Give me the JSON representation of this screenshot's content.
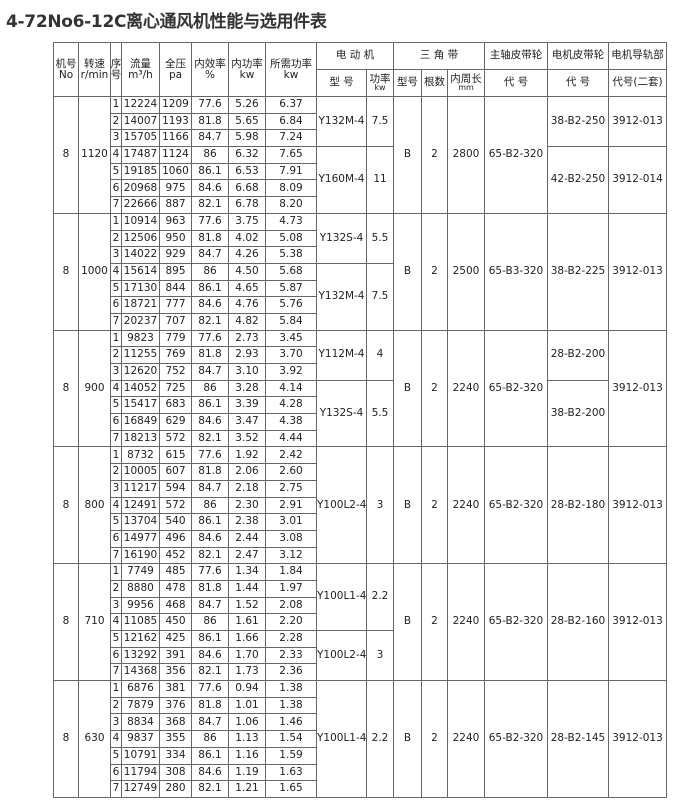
{
  "title": "4-72No6-12C离心通风机性能与选用件表",
  "header": {
    "machine": {
      "label": "机号",
      "unit": "No"
    },
    "speed": {
      "label": "转速",
      "unit": "r/min"
    },
    "seq": {
      "label": "序",
      "unit": "号"
    },
    "flow": {
      "label": "流量",
      "unit": "m³/h"
    },
    "pressure": {
      "label": "全压",
      "unit": "pa"
    },
    "efficiency": {
      "label": "内效率",
      "unit": "%"
    },
    "inner_power": {
      "label": "内功率",
      "unit": "kw"
    },
    "required_power": {
      "label": "所需功率",
      "unit": "kw"
    },
    "motor": {
      "label": "电 动 机",
      "model": "型 号",
      "power": "功率",
      "power_unit": "kw"
    },
    "belt": {
      "label": "三 角 带",
      "type": "型号",
      "count": "根数",
      "length": "内周长",
      "length_unit": "mm"
    },
    "main_pulley": {
      "label": "主轴皮带轮",
      "code": "代 号"
    },
    "motor_pulley": {
      "label": "电机皮带轮",
      "code": "代 号"
    },
    "rail": {
      "label": "电机导轨部",
      "code": "代号(二套)"
    }
  },
  "groups": [
    {
      "machine": "8",
      "speed": "1120",
      "rows": [
        [
          "1",
          "12224",
          "1209",
          "77.6",
          "5.26",
          "6.37"
        ],
        [
          "2",
          "14007",
          "1193",
          "81.8",
          "5.65",
          "6.84"
        ],
        [
          "3",
          "15705",
          "1166",
          "84.7",
          "5.98",
          "7.24"
        ],
        [
          "4",
          "17487",
          "1124",
          "86",
          "6.32",
          "7.65"
        ],
        [
          "5",
          "19185",
          "1060",
          "86.1",
          "6.53",
          "7.91"
        ],
        [
          "6",
          "20968",
          "975",
          "84.6",
          "6.68",
          "8.09"
        ],
        [
          "7",
          "22666",
          "887",
          "82.1",
          "6.78",
          "8.20"
        ]
      ],
      "motors": [
        {
          "model": "Y132M-4",
          "power": "7.5",
          "span": 3
        },
        {
          "model": "Y160M-4",
          "power": "11",
          "span": 4
        }
      ],
      "belt_type": "B",
      "belt_count": "2",
      "belt_length": "2800",
      "main_pulley": "65-B2-320",
      "motor_pulleys": [
        {
          "code": "38-B2-250",
          "span": 3
        },
        {
          "code": "42-B2-250",
          "span": 4
        }
      ],
      "rails": [
        {
          "code": "3912-013",
          "span": 3
        },
        {
          "code": "3912-014",
          "span": 4
        }
      ]
    },
    {
      "machine": "8",
      "speed": "1000",
      "rows": [
        [
          "1",
          "10914",
          "963",
          "77.6",
          "3.75",
          "4.73"
        ],
        [
          "2",
          "12506",
          "950",
          "81.8",
          "4.02",
          "5.08"
        ],
        [
          "3",
          "14022",
          "929",
          "84.7",
          "4.26",
          "5.38"
        ],
        [
          "4",
          "15614",
          "895",
          "86",
          "4.50",
          "5.68"
        ],
        [
          "5",
          "17130",
          "844",
          "86.1",
          "4.65",
          "5.87"
        ],
        [
          "6",
          "18721",
          "777",
          "84.6",
          "4.76",
          "5.76"
        ],
        [
          "7",
          "20237",
          "707",
          "82.1",
          "4.82",
          "5.84"
        ]
      ],
      "motors": [
        {
          "model": "Y132S-4",
          "power": "5.5",
          "span": 3
        },
        {
          "model": "Y132M-4",
          "power": "7.5",
          "span": 4
        }
      ],
      "belt_type": "B",
      "belt_count": "2",
      "belt_length": "2500",
      "main_pulley": "65-B3-320",
      "motor_pulleys": [
        {
          "code": "38-B2-225",
          "span": 7
        }
      ],
      "rails": [
        {
          "code": "3912-013",
          "span": 7
        }
      ]
    },
    {
      "machine": "8",
      "speed": "900",
      "rows": [
        [
          "1",
          "9823",
          "779",
          "77.6",
          "2.73",
          "3.45"
        ],
        [
          "2",
          "11255",
          "769",
          "81.8",
          "2.93",
          "3.70"
        ],
        [
          "3",
          "12620",
          "752",
          "84.7",
          "3.10",
          "3.92"
        ],
        [
          "4",
          "14052",
          "725",
          "86",
          "3.28",
          "4.14"
        ],
        [
          "5",
          "15417",
          "683",
          "86.1",
          "3.39",
          "4.28"
        ],
        [
          "6",
          "16849",
          "629",
          "84.6",
          "3.47",
          "4.38"
        ],
        [
          "7",
          "18213",
          "572",
          "82.1",
          "3.52",
          "4.44"
        ]
      ],
      "motors": [
        {
          "model": "Y112M-4",
          "power": "4",
          "span": 3
        },
        {
          "model": "Y132S-4",
          "power": "5.5",
          "span": 4
        }
      ],
      "belt_type": "B",
      "belt_count": "2",
      "belt_length": "2240",
      "main_pulley": "65-B2-320",
      "motor_pulleys": [
        {
          "code": "28-B2-200",
          "span": 3
        },
        {
          "code": "38-B2-200",
          "span": 4
        }
      ],
      "rails": [
        {
          "code": "3912-013",
          "span": 7
        }
      ]
    },
    {
      "machine": "8",
      "speed": "800",
      "rows": [
        [
          "1",
          "8732",
          "615",
          "77.6",
          "1.92",
          "2.42"
        ],
        [
          "2",
          "10005",
          "607",
          "81.8",
          "2.06",
          "2.60"
        ],
        [
          "3",
          "11217",
          "594",
          "84.7",
          "2.18",
          "2.75"
        ],
        [
          "4",
          "12491",
          "572",
          "86",
          "2.30",
          "2.91"
        ],
        [
          "5",
          "13704",
          "540",
          "86.1",
          "2.38",
          "3.01"
        ],
        [
          "6",
          "14977",
          "496",
          "84.6",
          "2.44",
          "3.08"
        ],
        [
          "7",
          "16190",
          "452",
          "82.1",
          "2.47",
          "3.12"
        ]
      ],
      "motors": [
        {
          "model": "Y100L2-4",
          "power": "3",
          "span": 7
        }
      ],
      "belt_type": "B",
      "belt_count": "2",
      "belt_length": "2240",
      "main_pulley": "65-B2-320",
      "motor_pulleys": [
        {
          "code": "28-B2-180",
          "span": 7
        }
      ],
      "rails": [
        {
          "code": "3912-013",
          "span": 7
        }
      ]
    },
    {
      "machine": "8",
      "speed": "710",
      "rows": [
        [
          "1",
          "7749",
          "485",
          "77.6",
          "1.34",
          "1.84"
        ],
        [
          "2",
          "8880",
          "478",
          "81.8",
          "1.44",
          "1.97"
        ],
        [
          "3",
          "9956",
          "468",
          "84.7",
          "1.52",
          "2.08"
        ],
        [
          "4",
          "11085",
          "450",
          "86",
          "1.61",
          "2.20"
        ],
        [
          "5",
          "12162",
          "425",
          "86.1",
          "1.66",
          "2.28"
        ],
        [
          "6",
          "13292",
          "391",
          "84.6",
          "1.70",
          "2.33"
        ],
        [
          "7",
          "14368",
          "356",
          "82.1",
          "1.73",
          "2.36"
        ]
      ],
      "motors": [
        {
          "model": "Y100L1-4",
          "power": "2.2",
          "span": 4
        },
        {
          "model": "Y100L2-4",
          "power": "3",
          "span": 3
        }
      ],
      "belt_type": "B",
      "belt_count": "2",
      "belt_length": "2240",
      "main_pulley": "65-B2-320",
      "motor_pulleys": [
        {
          "code": "28-B2-160",
          "span": 7
        }
      ],
      "rails": [
        {
          "code": "3912-013",
          "span": 7
        }
      ]
    },
    {
      "machine": "8",
      "speed": "630",
      "rows": [
        [
          "1",
          "6876",
          "381",
          "77.6",
          "0.94",
          "1.38"
        ],
        [
          "2",
          "7879",
          "376",
          "81.8",
          "1.01",
          "1.38"
        ],
        [
          "3",
          "8834",
          "368",
          "84.7",
          "1.06",
          "1.46"
        ],
        [
          "4",
          "9837",
          "355",
          "86",
          "1.13",
          "1.54"
        ],
        [
          "5",
          "10791",
          "334",
          "86.1",
          "1.16",
          "1.59"
        ],
        [
          "6",
          "11794",
          "308",
          "84.6",
          "1.19",
          "1.63"
        ],
        [
          "7",
          "12749",
          "280",
          "82.1",
          "1.21",
          "1.65"
        ]
      ],
      "motors": [
        {
          "model": "Y100L1-4",
          "power": "2.2",
          "span": 7
        }
      ],
      "belt_type": "B",
      "belt_count": "2",
      "belt_length": "2240",
      "main_pulley": "65-B2-320",
      "motor_pulleys": [
        {
          "code": "28-B2-145",
          "span": 7
        }
      ],
      "rails": [
        {
          "code": "3912-013",
          "span": 7
        }
      ]
    }
  ]
}
